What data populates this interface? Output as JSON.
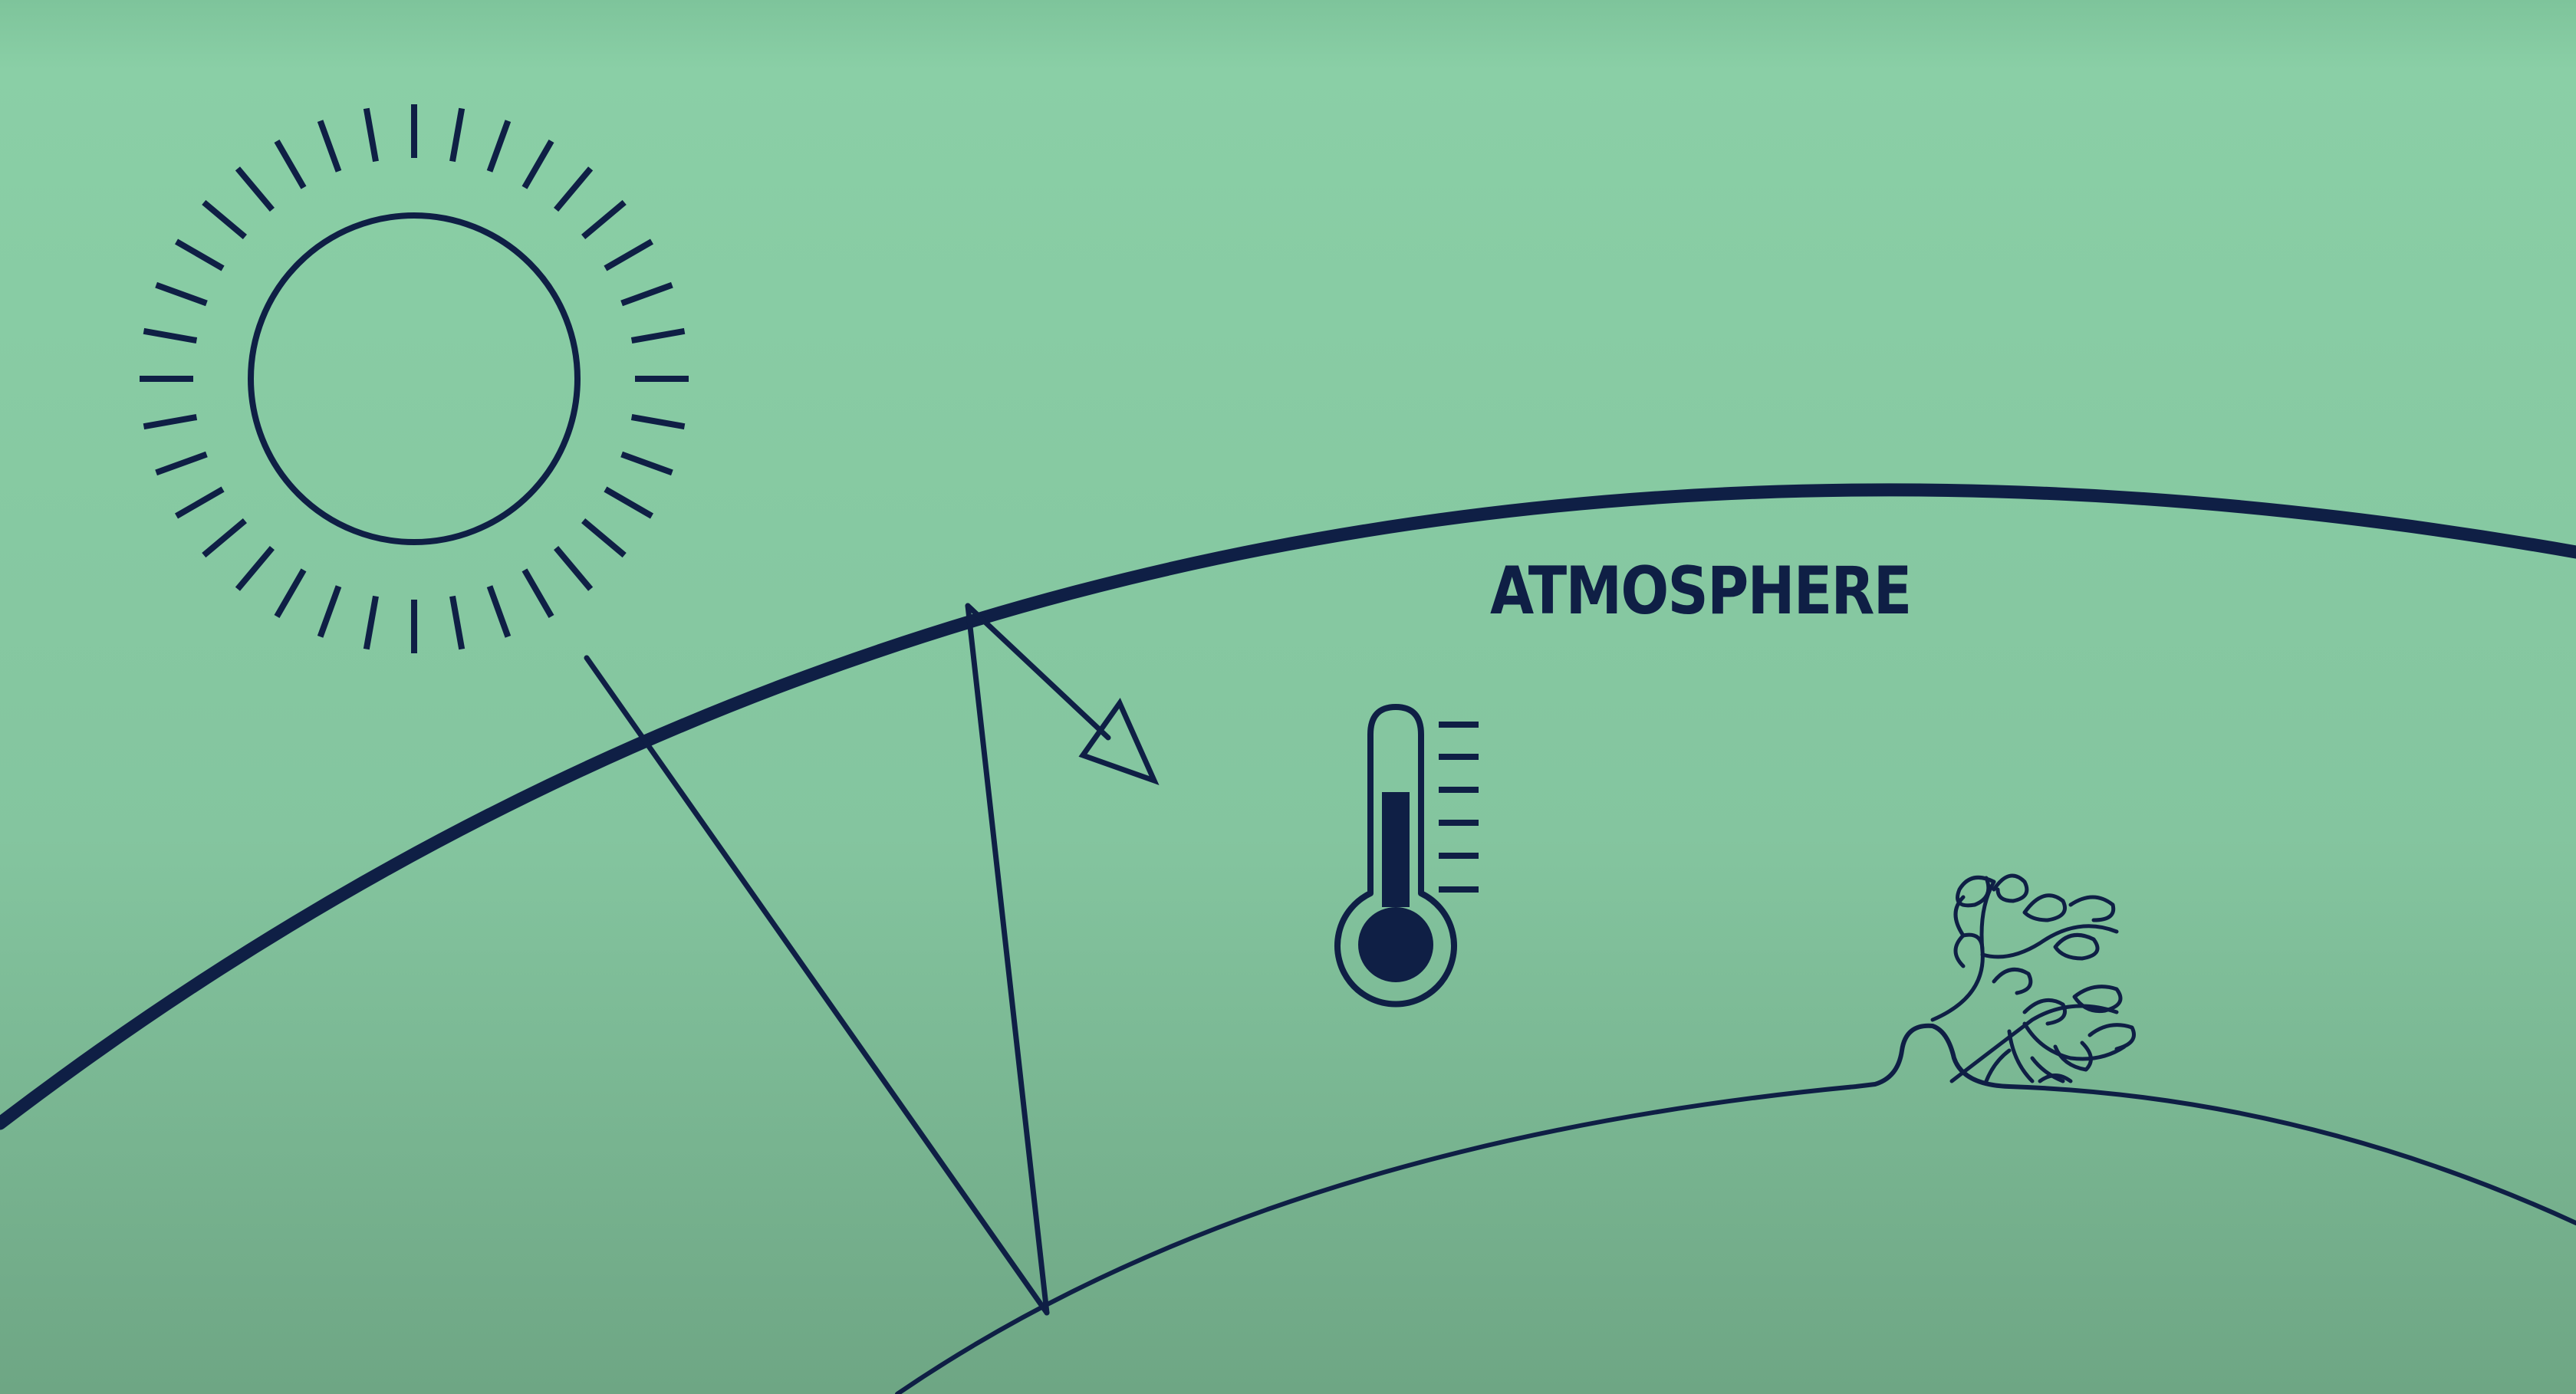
{
  "labels": {
    "atmosphere": "ATMOSPHERE"
  },
  "icons": {
    "sun": "sun-icon",
    "thermometer": "thermometer-icon",
    "tree": "tree-icon",
    "arrow": "arrow-icon"
  },
  "colors": {
    "background_top": "#8acfa6",
    "background_bottom": "#6fa885",
    "ink": "#0f1f45"
  }
}
